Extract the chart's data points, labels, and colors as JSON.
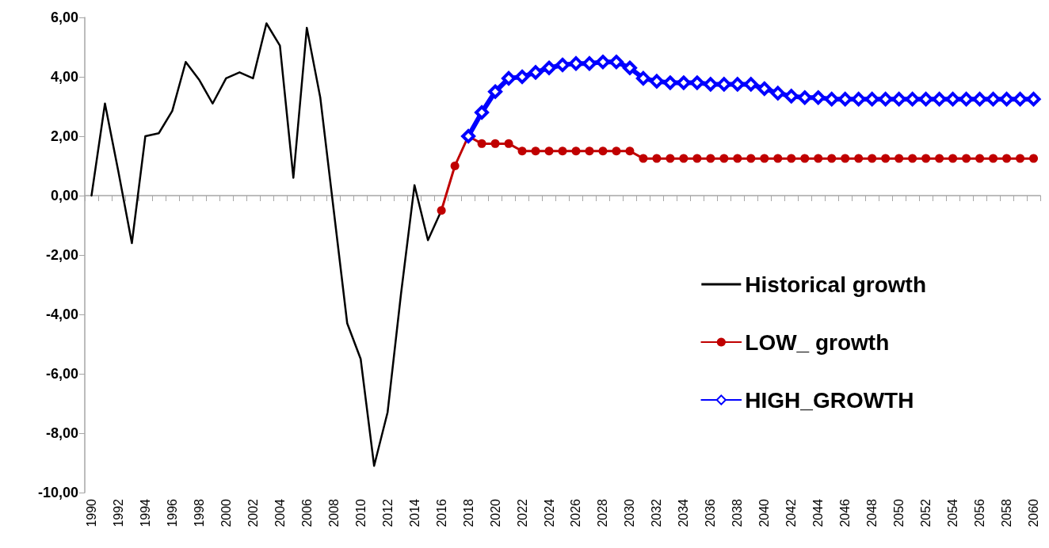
{
  "chart_data": {
    "type": "line",
    "categories": [
      "1990",
      null,
      "1992",
      null,
      "1994",
      null,
      "1996",
      null,
      "1998",
      null,
      "2000",
      null,
      "2002",
      null,
      "2004",
      null,
      "2006",
      null,
      "2008",
      null,
      "2010",
      null,
      "2012",
      null,
      "2014",
      null,
      "2016",
      null,
      "2018",
      null,
      "2020",
      null,
      "2022",
      null,
      "2024",
      null,
      "2026",
      null,
      "2028",
      null,
      "2030",
      null,
      "2032",
      null,
      "2034",
      null,
      "2036",
      null,
      "2038",
      null,
      "2040",
      null,
      "2042",
      null,
      "2044",
      null,
      "2046",
      null,
      "2048",
      null,
      "2050",
      null,
      "2052",
      null,
      "2054",
      null,
      "2056",
      null,
      "2058",
      null,
      "2060"
    ],
    "series": [
      {
        "name": "Historical growth",
        "color": "#000000",
        "marker": "none",
        "values": [
          0.0,
          3.1,
          0.8,
          -1.6,
          2.0,
          2.1,
          2.85,
          4.5,
          3.9,
          3.1,
          3.95,
          4.15,
          3.95,
          5.8,
          5.05,
          0.6,
          5.65,
          3.3,
          -0.5,
          -4.3,
          -5.5,
          -9.1,
          -7.3,
          -3.3,
          0.35,
          -1.5,
          -0.5,
          null,
          null,
          null,
          null,
          null,
          null,
          null,
          null,
          null,
          null,
          null,
          null,
          null,
          null,
          null,
          null,
          null,
          null,
          null,
          null,
          null,
          null,
          null,
          null,
          null,
          null,
          null,
          null,
          null,
          null,
          null,
          null,
          null,
          null,
          null,
          null,
          null,
          null,
          null,
          null,
          null,
          null,
          null,
          null
        ]
      },
      {
        "name": "LOW_ growth",
        "color": "#c00000",
        "marker": "circle",
        "values": [
          null,
          null,
          null,
          null,
          null,
          null,
          null,
          null,
          null,
          null,
          null,
          null,
          null,
          null,
          null,
          null,
          null,
          null,
          null,
          null,
          null,
          null,
          null,
          null,
          null,
          null,
          -0.5,
          1.0,
          2.0,
          1.75,
          1.75,
          1.75,
          1.5,
          1.5,
          1.5,
          1.5,
          1.5,
          1.5,
          1.5,
          1.5,
          1.5,
          1.25,
          1.25,
          1.25,
          1.25,
          1.25,
          1.25,
          1.25,
          1.25,
          1.25,
          1.25,
          1.25,
          1.25,
          1.25,
          1.25,
          1.25,
          1.25,
          1.25,
          1.25,
          1.25,
          1.25,
          1.25,
          1.25,
          1.25,
          1.25,
          1.25,
          1.25,
          1.25,
          1.25,
          1.25,
          1.25
        ]
      },
      {
        "name": "HIGH_GROWTH",
        "color": "#0000ff",
        "marker": "diamond",
        "values": [
          null,
          null,
          null,
          null,
          null,
          null,
          null,
          null,
          null,
          null,
          null,
          null,
          null,
          null,
          null,
          null,
          null,
          null,
          null,
          null,
          null,
          null,
          null,
          null,
          null,
          null,
          null,
          null,
          2.0,
          2.8,
          3.5,
          3.95,
          4.0,
          4.15,
          4.3,
          4.4,
          4.45,
          4.45,
          4.5,
          4.5,
          4.3,
          3.95,
          3.85,
          3.8,
          3.8,
          3.8,
          3.75,
          3.75,
          3.75,
          3.75,
          3.6,
          3.45,
          3.35,
          3.3,
          3.3,
          3.25,
          3.25,
          3.25,
          3.25,
          3.25,
          3.25,
          3.25,
          3.25,
          3.25,
          3.25,
          3.25,
          3.25,
          3.25,
          3.25,
          3.25,
          3.25
        ]
      }
    ],
    "ylim": [
      -10,
      6
    ],
    "yticks": [
      {
        "value": -10,
        "label": "-10,00"
      },
      {
        "value": -8,
        "label": "-8,00"
      },
      {
        "value": -6,
        "label": "-6,00"
      },
      {
        "value": -4,
        "label": "-4,00"
      },
      {
        "value": -2,
        "label": "-2,00"
      },
      {
        "value": 0,
        "label": "0,00"
      },
      {
        "value": 2,
        "label": "2,00"
      },
      {
        "value": 4,
        "label": "4,00"
      },
      {
        "value": 6,
        "label": "6,00"
      }
    ],
    "legend": "right"
  }
}
